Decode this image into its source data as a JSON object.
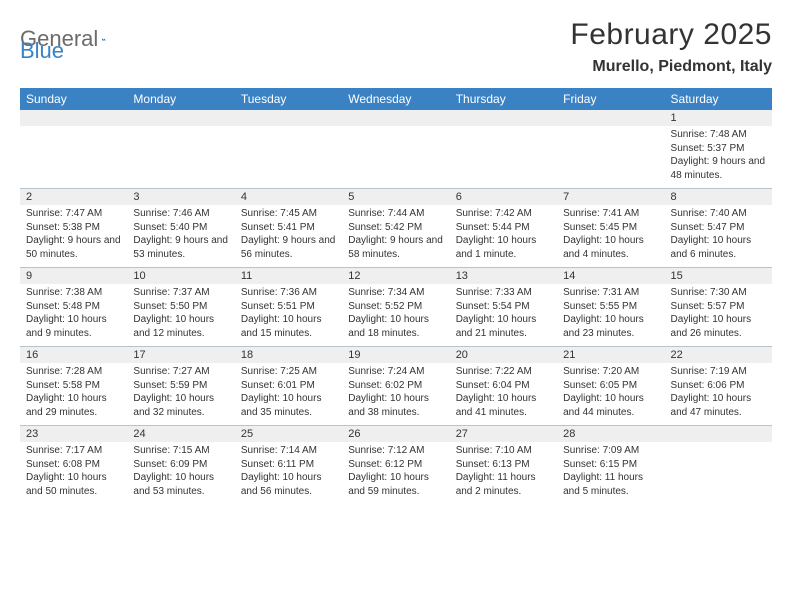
{
  "brand": {
    "part1": "General",
    "part2": "Blue",
    "logo_color": "#2a6bb0"
  },
  "title": "February 2025",
  "location": "Murello, Piedmont, Italy",
  "colors": {
    "header_bg": "#3b82c4",
    "header_text": "#ffffff",
    "daynum_bg": "#efefef",
    "border": "#b8c4cc",
    "text": "#333333",
    "brand_gray": "#6b6b6b",
    "brand_blue": "#3b82c4"
  },
  "day_headers": [
    "Sunday",
    "Monday",
    "Tuesday",
    "Wednesday",
    "Thursday",
    "Friday",
    "Saturday"
  ],
  "weeks": [
    [
      null,
      null,
      null,
      null,
      null,
      null,
      {
        "n": "1",
        "sr": "7:48 AM",
        "ss": "5:37 PM",
        "dl": "9 hours and 48 minutes."
      }
    ],
    [
      {
        "n": "2",
        "sr": "7:47 AM",
        "ss": "5:38 PM",
        "dl": "9 hours and 50 minutes."
      },
      {
        "n": "3",
        "sr": "7:46 AM",
        "ss": "5:40 PM",
        "dl": "9 hours and 53 minutes."
      },
      {
        "n": "4",
        "sr": "7:45 AM",
        "ss": "5:41 PM",
        "dl": "9 hours and 56 minutes."
      },
      {
        "n": "5",
        "sr": "7:44 AM",
        "ss": "5:42 PM",
        "dl": "9 hours and 58 minutes."
      },
      {
        "n": "6",
        "sr": "7:42 AM",
        "ss": "5:44 PM",
        "dl": "10 hours and 1 minute."
      },
      {
        "n": "7",
        "sr": "7:41 AM",
        "ss": "5:45 PM",
        "dl": "10 hours and 4 minutes."
      },
      {
        "n": "8",
        "sr": "7:40 AM",
        "ss": "5:47 PM",
        "dl": "10 hours and 6 minutes."
      }
    ],
    [
      {
        "n": "9",
        "sr": "7:38 AM",
        "ss": "5:48 PM",
        "dl": "10 hours and 9 minutes."
      },
      {
        "n": "10",
        "sr": "7:37 AM",
        "ss": "5:50 PM",
        "dl": "10 hours and 12 minutes."
      },
      {
        "n": "11",
        "sr": "7:36 AM",
        "ss": "5:51 PM",
        "dl": "10 hours and 15 minutes."
      },
      {
        "n": "12",
        "sr": "7:34 AM",
        "ss": "5:52 PM",
        "dl": "10 hours and 18 minutes."
      },
      {
        "n": "13",
        "sr": "7:33 AM",
        "ss": "5:54 PM",
        "dl": "10 hours and 21 minutes."
      },
      {
        "n": "14",
        "sr": "7:31 AM",
        "ss": "5:55 PM",
        "dl": "10 hours and 23 minutes."
      },
      {
        "n": "15",
        "sr": "7:30 AM",
        "ss": "5:57 PM",
        "dl": "10 hours and 26 minutes."
      }
    ],
    [
      {
        "n": "16",
        "sr": "7:28 AM",
        "ss": "5:58 PM",
        "dl": "10 hours and 29 minutes."
      },
      {
        "n": "17",
        "sr": "7:27 AM",
        "ss": "5:59 PM",
        "dl": "10 hours and 32 minutes."
      },
      {
        "n": "18",
        "sr": "7:25 AM",
        "ss": "6:01 PM",
        "dl": "10 hours and 35 minutes."
      },
      {
        "n": "19",
        "sr": "7:24 AM",
        "ss": "6:02 PM",
        "dl": "10 hours and 38 minutes."
      },
      {
        "n": "20",
        "sr": "7:22 AM",
        "ss": "6:04 PM",
        "dl": "10 hours and 41 minutes."
      },
      {
        "n": "21",
        "sr": "7:20 AM",
        "ss": "6:05 PM",
        "dl": "10 hours and 44 minutes."
      },
      {
        "n": "22",
        "sr": "7:19 AM",
        "ss": "6:06 PM",
        "dl": "10 hours and 47 minutes."
      }
    ],
    [
      {
        "n": "23",
        "sr": "7:17 AM",
        "ss": "6:08 PM",
        "dl": "10 hours and 50 minutes."
      },
      {
        "n": "24",
        "sr": "7:15 AM",
        "ss": "6:09 PM",
        "dl": "10 hours and 53 minutes."
      },
      {
        "n": "25",
        "sr": "7:14 AM",
        "ss": "6:11 PM",
        "dl": "10 hours and 56 minutes."
      },
      {
        "n": "26",
        "sr": "7:12 AM",
        "ss": "6:12 PM",
        "dl": "10 hours and 59 minutes."
      },
      {
        "n": "27",
        "sr": "7:10 AM",
        "ss": "6:13 PM",
        "dl": "11 hours and 2 minutes."
      },
      {
        "n": "28",
        "sr": "7:09 AM",
        "ss": "6:15 PM",
        "dl": "11 hours and 5 minutes."
      },
      null
    ]
  ],
  "labels": {
    "sunrise": "Sunrise:",
    "sunset": "Sunset:",
    "daylight": "Daylight:"
  }
}
